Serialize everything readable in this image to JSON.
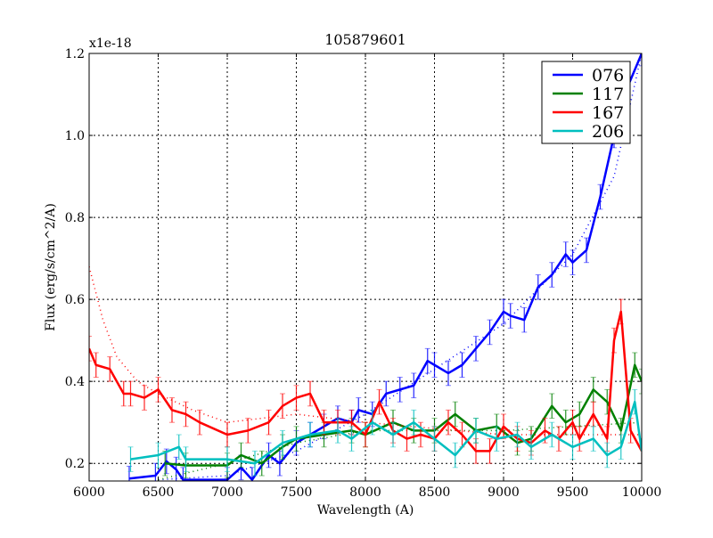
{
  "chart_data": {
    "type": "line",
    "title": "105879601",
    "xlabel": "Wavelength (A)",
    "ylabel": "Flux (erg/s/cm^2/A)",
    "offset_text": "x1e-18",
    "xlim": [
      6000,
      10000
    ],
    "ylim": [
      0.157,
      1.2
    ],
    "xticks": [
      6000,
      6500,
      7000,
      7500,
      8000,
      8500,
      9000,
      9500,
      10000
    ],
    "yticks": [
      0.2,
      0.4,
      0.6,
      0.8,
      1.0,
      1.2
    ],
    "ytick_labels": [
      "0.2",
      "0.4",
      "0.6",
      "0.8",
      "1.0",
      "1.2"
    ],
    "grid": true,
    "legend_position": "top-right",
    "error": 0.03,
    "series": [
      {
        "name": "076",
        "color": "#0000ff",
        "x": [
          6290,
          6480,
          6560,
          6630,
          6680,
          7000,
          7100,
          7180,
          7300,
          7380,
          7500,
          7600,
          7700,
          7800,
          7900,
          7950,
          8050,
          8150,
          8250,
          8350,
          8450,
          8500,
          8600,
          8700,
          8800,
          8900,
          9000,
          9050,
          9150,
          9250,
          9350,
          9450,
          9500,
          9600,
          9700,
          9800,
          9900,
          10000
        ],
        "y": [
          0.163,
          0.17,
          0.205,
          0.185,
          0.16,
          0.16,
          0.19,
          0.16,
          0.22,
          0.2,
          0.25,
          0.27,
          0.29,
          0.31,
          0.3,
          0.33,
          0.32,
          0.37,
          0.38,
          0.39,
          0.45,
          0.44,
          0.42,
          0.44,
          0.48,
          0.52,
          0.57,
          0.56,
          0.55,
          0.63,
          0.66,
          0.71,
          0.69,
          0.72,
          0.85,
          1.0,
          1.12,
          1.2
        ],
        "fit_x": [
          6500,
          7000,
          7500,
          8000,
          8500,
          9000,
          9500,
          9800,
          10000
        ],
        "fit_y": [
          0.16,
          0.17,
          0.23,
          0.32,
          0.43,
          0.54,
          0.71,
          0.9,
          1.2
        ]
      },
      {
        "name": "117",
        "color": "#008000",
        "x": [
          6550,
          6700,
          7000,
          7100,
          7250,
          7400,
          7500,
          7700,
          7900,
          8000,
          8200,
          8350,
          8500,
          8650,
          8800,
          8950,
          9100,
          9200,
          9350,
          9450,
          9550,
          9650,
          9750,
          9850,
          9950,
          10000
        ],
        "y": [
          0.2,
          0.195,
          0.195,
          0.22,
          0.2,
          0.24,
          0.26,
          0.27,
          0.28,
          0.27,
          0.3,
          0.28,
          0.28,
          0.32,
          0.28,
          0.29,
          0.25,
          0.26,
          0.34,
          0.3,
          0.32,
          0.38,
          0.35,
          0.28,
          0.44,
          0.4
        ],
        "fit_x": [
          6500,
          7000,
          7500,
          8000,
          9000,
          10000
        ],
        "fit_y": [
          0.16,
          0.2,
          0.25,
          0.28,
          0.28,
          0.3
        ]
      },
      {
        "name": "167",
        "color": "#ff0000",
        "x": [
          6000,
          6050,
          6150,
          6250,
          6300,
          6400,
          6500,
          6600,
          6700,
          6800,
          7000,
          7150,
          7300,
          7400,
          7500,
          7600,
          7700,
          7800,
          7900,
          8000,
          8100,
          8200,
          8300,
          8400,
          8500,
          8600,
          8700,
          8800,
          8900,
          9000,
          9100,
          9200,
          9300,
          9400,
          9500,
          9550,
          9650,
          9750,
          9800,
          9850,
          9920,
          10000
        ],
        "y": [
          0.48,
          0.44,
          0.43,
          0.37,
          0.37,
          0.36,
          0.38,
          0.33,
          0.32,
          0.3,
          0.27,
          0.28,
          0.3,
          0.34,
          0.36,
          0.37,
          0.3,
          0.3,
          0.3,
          0.27,
          0.35,
          0.28,
          0.26,
          0.27,
          0.26,
          0.3,
          0.27,
          0.23,
          0.23,
          0.29,
          0.26,
          0.25,
          0.28,
          0.26,
          0.3,
          0.26,
          0.32,
          0.26,
          0.5,
          0.57,
          0.28,
          0.23
        ],
        "fit_x": [
          6000,
          6100,
          6200,
          6350,
          6500,
          6750,
          7000,
          7500,
          8000,
          9000,
          10000
        ],
        "fit_y": [
          0.68,
          0.55,
          0.46,
          0.4,
          0.37,
          0.33,
          0.3,
          0.32,
          0.3,
          0.27,
          0.27
        ]
      },
      {
        "name": "206",
        "color": "#00bfbf",
        "x": [
          6300,
          6500,
          6650,
          6700,
          7000,
          7200,
          7400,
          7600,
          7800,
          7900,
          8050,
          8200,
          8350,
          8500,
          8650,
          8800,
          8950,
          9100,
          9200,
          9350,
          9500,
          9650,
          9750,
          9850,
          9950,
          10000
        ],
        "y": [
          0.21,
          0.22,
          0.24,
          0.21,
          0.21,
          0.2,
          0.25,
          0.27,
          0.28,
          0.26,
          0.3,
          0.27,
          0.3,
          0.26,
          0.22,
          0.28,
          0.26,
          0.27,
          0.24,
          0.27,
          0.24,
          0.26,
          0.22,
          0.24,
          0.35,
          0.23
        ]
      }
    ]
  }
}
